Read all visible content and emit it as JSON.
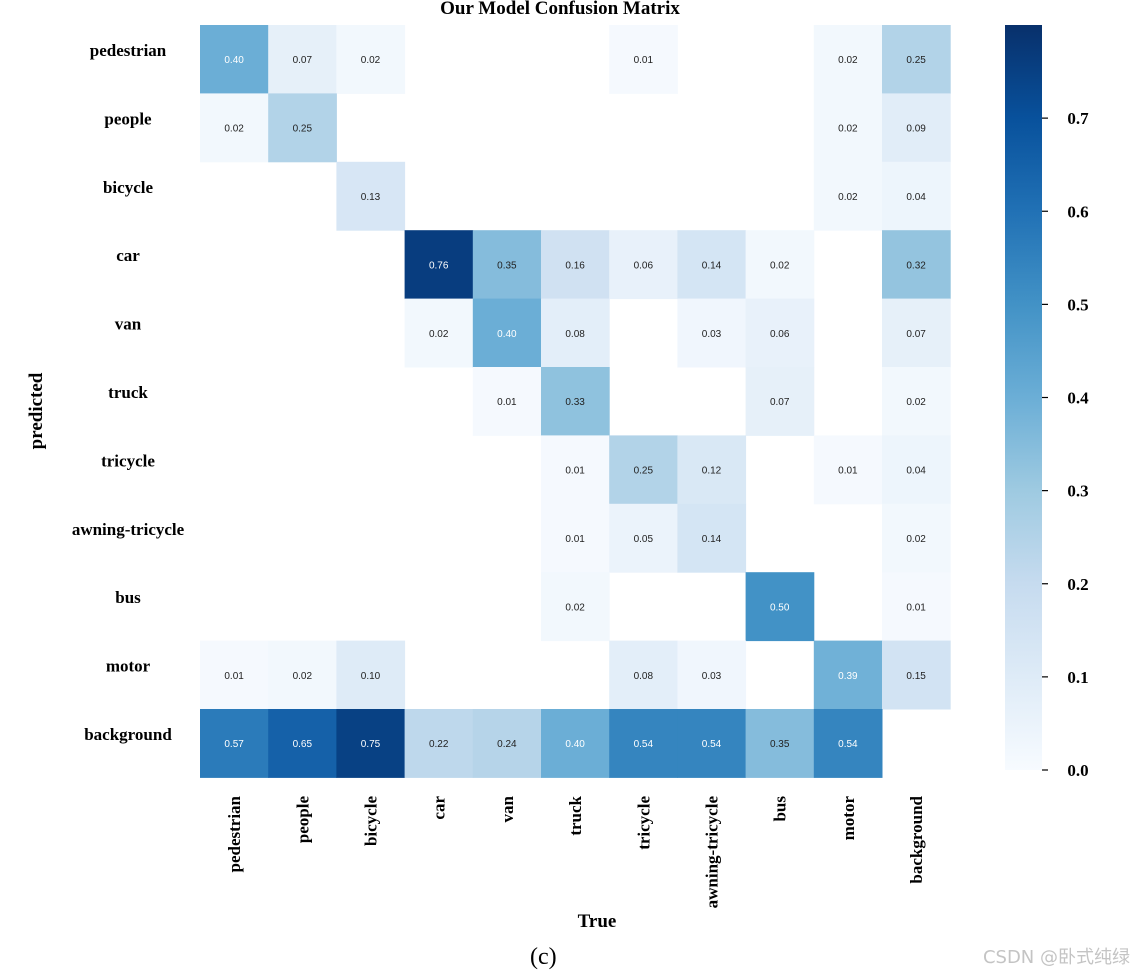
{
  "chart_data": {
    "type": "heatmap",
    "title": "Our Model Confusion Matrix",
    "xlabel": "True",
    "ylabel": "predicted",
    "x_categories": [
      "pedestrian",
      "people",
      "bicycle",
      "car",
      "van",
      "truck",
      "tricycle",
      "awning-tricycle",
      "bus",
      "motor",
      "background"
    ],
    "y_categories": [
      "pedestrian",
      "people",
      "bicycle",
      "car",
      "van",
      "truck",
      "tricycle",
      "awning-tricycle",
      "bus",
      "motor",
      "background"
    ],
    "values": [
      [
        0.4,
        0.07,
        0.02,
        null,
        null,
        null,
        0.01,
        null,
        null,
        0.02,
        0.25
      ],
      [
        0.02,
        0.25,
        null,
        null,
        null,
        null,
        null,
        null,
        null,
        0.02,
        0.09
      ],
      [
        null,
        null,
        0.13,
        null,
        null,
        null,
        null,
        null,
        null,
        0.02,
        0.04
      ],
      [
        null,
        null,
        null,
        0.76,
        0.35,
        0.16,
        0.06,
        0.14,
        0.02,
        null,
        0.32
      ],
      [
        null,
        null,
        null,
        0.02,
        0.4,
        0.08,
        null,
        0.03,
        0.06,
        null,
        0.07
      ],
      [
        null,
        null,
        null,
        null,
        0.01,
        0.33,
        null,
        null,
        0.07,
        null,
        0.02
      ],
      [
        null,
        null,
        null,
        null,
        null,
        0.01,
        0.25,
        0.12,
        null,
        0.01,
        0.04
      ],
      [
        null,
        null,
        null,
        null,
        null,
        0.01,
        0.05,
        0.14,
        null,
        null,
        0.02
      ],
      [
        null,
        null,
        null,
        null,
        null,
        0.02,
        null,
        null,
        0.5,
        null,
        0.01
      ],
      [
        0.01,
        0.02,
        0.1,
        null,
        null,
        null,
        0.08,
        0.03,
        null,
        0.39,
        0.15
      ],
      [
        0.57,
        0.65,
        0.75,
        0.22,
        0.24,
        0.4,
        0.54,
        0.54,
        0.35,
        0.54,
        null
      ]
    ],
    "colorbar": {
      "min": 0.0,
      "max": 0.8,
      "ticks": [
        0.0,
        0.1,
        0.2,
        0.3,
        0.4,
        0.5,
        0.6,
        0.7
      ],
      "tick_labels": [
        "0.0",
        "0.1",
        "0.2",
        "0.3",
        "0.4",
        "0.5",
        "0.6",
        "0.7"
      ],
      "colormap": "Blues"
    },
    "colormap_stops": [
      "#f7fbff",
      "#deebf7",
      "#c6dbef",
      "#9ecae1",
      "#6baed6",
      "#4292c6",
      "#2171b5",
      "#08519c",
      "#08306b"
    ]
  },
  "caption": "(c)",
  "watermark": "CSDN @卧式纯绿"
}
